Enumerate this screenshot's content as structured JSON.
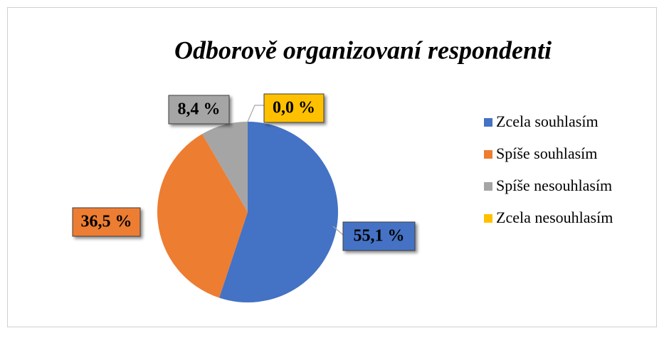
{
  "chart_data": {
    "type": "pie",
    "title": "Odborově organizovaní respondenti",
    "categories": [
      "Zcela souhlasím",
      "Spíše souhlasím",
      "Spíše nesouhlasím",
      "Zcela nesouhlasím"
    ],
    "values": [
      55.1,
      36.5,
      8.4,
      0.0
    ],
    "value_labels": [
      "55,1 %",
      "36,5 %",
      "8,4 %",
      "0,0 %"
    ],
    "colors": [
      "#4472c4",
      "#ed7d31",
      "#a5a5a5",
      "#ffc000"
    ],
    "legend": "right"
  }
}
